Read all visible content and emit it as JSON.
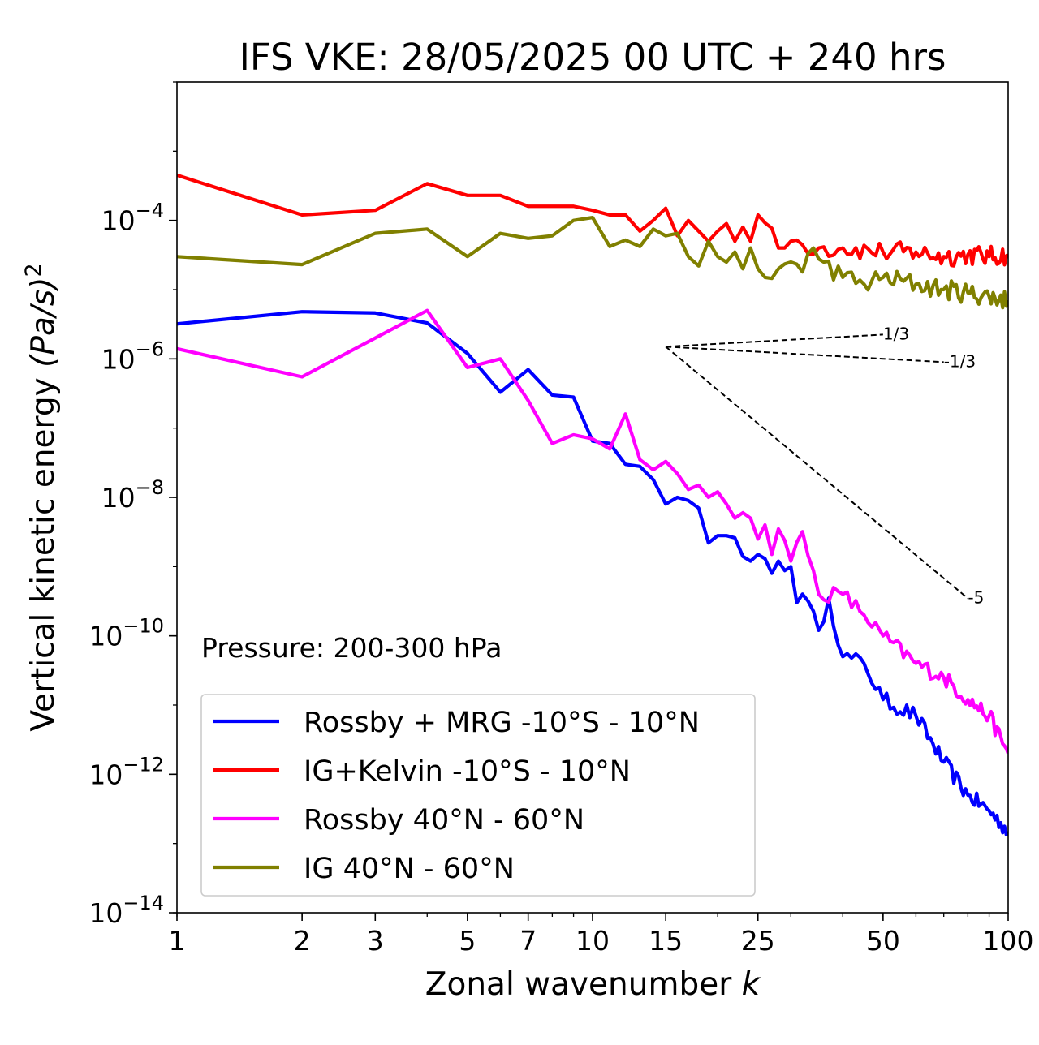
{
  "chart_data": {
    "type": "line",
    "title": "IFS VKE: 28/05/2025 00 UTC + 240 hrs",
    "xlabel": "Zonal wavenumber ",
    "xlabel_italic": "k",
    "ylabel": "Vertical kinetic energy ",
    "ylabel_unit": "(Pa/s)",
    "ylabel_unit_exp": "2",
    "xscale": "log",
    "yscale": "log",
    "xlim": [
      1,
      100
    ],
    "ylim": [
      1e-14,
      0.01
    ],
    "x_ticks": [
      1,
      2,
      3,
      5,
      7,
      10,
      15,
      25,
      50,
      100
    ],
    "x_tick_labels": [
      "1",
      "2",
      "3",
      "5",
      "7",
      "10",
      "15",
      "25",
      "50",
      "100"
    ],
    "y_ticks": [
      1e-14,
      1e-12,
      1e-10,
      1e-08,
      1e-06,
      0.0001
    ],
    "y_tick_bases": [
      "10",
      "10",
      "10",
      "10",
      "10",
      "10"
    ],
    "y_tick_exps": [
      "−14",
      "−12",
      "−10",
      "−8",
      "−6",
      "−4"
    ],
    "annotation": "Pressure: 200-300 hPa",
    "legend_placement": "lower-left",
    "grid": false,
    "slope_reference": {
      "origin": [
        15,
        1.5e-06
      ],
      "lines": [
        {
          "label": "1/3",
          "end_x": 50
        },
        {
          "label": "-1/3",
          "end_x": 70
        },
        {
          "label": "-5",
          "end_x": 80
        }
      ]
    },
    "series": [
      {
        "name": "Rossby + MRG -10°S - 10°N",
        "color": "#0000ff",
        "anchors": [
          [
            1,
            3.2e-06
          ],
          [
            2,
            4.8e-06
          ],
          [
            3,
            4.6e-06
          ],
          [
            4,
            3.3e-06
          ],
          [
            5,
            1.2e-06
          ],
          [
            6,
            3.3e-07
          ],
          [
            7,
            7e-07
          ],
          [
            8,
            3e-07
          ],
          [
            9,
            2.8e-07
          ],
          [
            10,
            6.5e-08
          ],
          [
            11,
            6e-08
          ],
          [
            12,
            3e-08
          ],
          [
            13,
            2.8e-08
          ],
          [
            14,
            1.8e-08
          ],
          [
            15,
            8e-09
          ],
          [
            16,
            1e-08
          ],
          [
            17,
            9e-09
          ],
          [
            18,
            7e-09
          ],
          [
            19,
            2.2e-09
          ],
          [
            20,
            2.8e-09
          ],
          [
            21,
            2.8e-09
          ],
          [
            22,
            2.6e-09
          ],
          [
            23,
            1.4e-09
          ],
          [
            24,
            1.2e-09
          ],
          [
            25,
            1.5e-09
          ],
          [
            26,
            1.3e-09
          ],
          [
            27,
            8e-10
          ],
          [
            28,
            1.2e-09
          ],
          [
            30,
            1e-09
          ],
          [
            31,
            3e-10
          ],
          [
            32,
            4e-10
          ],
          [
            35,
            1.2e-10
          ],
          [
            37,
            3.5e-10
          ],
          [
            40,
            5e-11
          ],
          [
            45,
            4e-11
          ],
          [
            50,
            1.2e-11
          ],
          [
            60,
            7e-12
          ],
          [
            70,
            1.5e-12
          ],
          [
            80,
            5e-13
          ],
          [
            90,
            3e-13
          ],
          [
            100,
            1.5e-13
          ]
        ],
        "jitter": 0.12
      },
      {
        "name": "IG+Kelvin -10°S - 10°N",
        "color": "#ff0000",
        "anchors": [
          [
            1,
            0.00045
          ],
          [
            2,
            0.00012
          ],
          [
            3,
            0.00014
          ],
          [
            4,
            0.00034
          ],
          [
            5,
            0.00023
          ],
          [
            6,
            0.00023
          ],
          [
            7,
            0.00016
          ],
          [
            8,
            0.00016
          ],
          [
            9,
            0.00016
          ],
          [
            10,
            0.00014
          ],
          [
            11,
            0.00012
          ],
          [
            12,
            0.00012
          ],
          [
            13,
            7e-05
          ],
          [
            14,
            0.0001
          ],
          [
            15,
            0.00015
          ],
          [
            16,
            6e-05
          ],
          [
            17,
            0.0001
          ],
          [
            18,
            7e-05
          ],
          [
            19,
            5e-05
          ],
          [
            20,
            7e-05
          ],
          [
            21,
            9e-05
          ],
          [
            22,
            5e-05
          ],
          [
            23,
            8e-05
          ],
          [
            24,
            5e-05
          ],
          [
            25,
            0.00012
          ],
          [
            28,
            4e-05
          ],
          [
            30,
            5e-05
          ],
          [
            35,
            4e-05
          ],
          [
            40,
            4e-05
          ],
          [
            50,
            3.5e-05
          ],
          [
            60,
            3.5e-05
          ],
          [
            70,
            3e-05
          ],
          [
            80,
            3.2e-05
          ],
          [
            90,
            3e-05
          ],
          [
            100,
            3.2e-05
          ]
        ],
        "jitter": 0.15
      },
      {
        "name": "Rossby 40°N - 60°N",
        "color": "#ff00ff",
        "anchors": [
          [
            1,
            1.4e-06
          ],
          [
            2,
            5.5e-07
          ],
          [
            3,
            2e-06
          ],
          [
            4,
            5e-06
          ],
          [
            5,
            7.5e-07
          ],
          [
            6,
            1e-06
          ],
          [
            7,
            2.5e-07
          ],
          [
            8,
            6e-08
          ],
          [
            9,
            8e-08
          ],
          [
            10,
            7e-08
          ],
          [
            11,
            5e-08
          ],
          [
            12,
            1.6e-07
          ],
          [
            13,
            3.5e-08
          ],
          [
            14,
            2.5e-08
          ],
          [
            15,
            3.3e-08
          ],
          [
            16,
            2.2e-08
          ],
          [
            17,
            1.3e-08
          ],
          [
            18,
            1.5e-08
          ],
          [
            19,
            1e-08
          ],
          [
            20,
            1.2e-08
          ],
          [
            21,
            8e-09
          ],
          [
            22,
            5e-09
          ],
          [
            23,
            6e-09
          ],
          [
            24,
            5e-09
          ],
          [
            25,
            2.5e-09
          ],
          [
            26,
            4e-09
          ],
          [
            27,
            1.5e-09
          ],
          [
            28,
            3.5e-09
          ],
          [
            30,
            1.2e-09
          ],
          [
            32,
            3.2e-09
          ],
          [
            35,
            4e-10
          ],
          [
            40,
            4e-10
          ],
          [
            45,
            2e-10
          ],
          [
            50,
            1e-10
          ],
          [
            60,
            4e-11
          ],
          [
            70,
            2.5e-11
          ],
          [
            80,
            1.2e-11
          ],
          [
            90,
            7e-12
          ],
          [
            100,
            2e-12
          ]
        ],
        "jitter": 0.12
      },
      {
        "name": "IG 40°N - 60°N",
        "color": "#808000",
        "anchors": [
          [
            1,
            3e-05
          ],
          [
            2,
            2.3e-05
          ],
          [
            3,
            6.5e-05
          ],
          [
            4,
            7.5e-05
          ],
          [
            5,
            3e-05
          ],
          [
            6,
            6.5e-05
          ],
          [
            7,
            5.5e-05
          ],
          [
            8,
            6e-05
          ],
          [
            9,
            0.0001
          ],
          [
            10,
            0.00011
          ],
          [
            11,
            4.2e-05
          ],
          [
            12,
            5.2e-05
          ],
          [
            13,
            4.2e-05
          ],
          [
            14,
            7.5e-05
          ],
          [
            15,
            6e-05
          ],
          [
            16,
            6.5e-05
          ],
          [
            17,
            3e-05
          ],
          [
            18,
            2.2e-05
          ],
          [
            19,
            5e-05
          ],
          [
            20,
            3e-05
          ],
          [
            21,
            2.5e-05
          ],
          [
            22,
            3.5e-05
          ],
          [
            23,
            2e-05
          ],
          [
            24,
            4e-05
          ],
          [
            25,
            2e-05
          ],
          [
            26,
            1.5e-05
          ],
          [
            28,
            2e-05
          ],
          [
            30,
            2.5e-05
          ],
          [
            32,
            1.8e-05
          ],
          [
            34,
            4e-05
          ],
          [
            36,
            2.5e-05
          ],
          [
            40,
            1.5e-05
          ],
          [
            45,
            1.2e-05
          ],
          [
            50,
            1.5e-05
          ],
          [
            60,
            1.2e-05
          ],
          [
            70,
            1e-05
          ],
          [
            80,
            9e-06
          ],
          [
            90,
            8e-06
          ],
          [
            100,
            7e-06
          ]
        ],
        "jitter": 0.15
      }
    ]
  }
}
